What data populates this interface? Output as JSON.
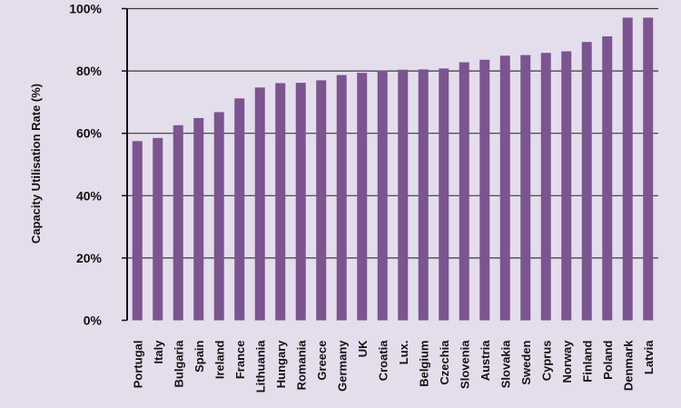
{
  "chart_data": {
    "type": "bar",
    "title": "",
    "xlabel": "",
    "ylabel": "Capacity Utilisation Rate (%)",
    "ylim": [
      0,
      100
    ],
    "yticks": [
      "0%",
      "20%",
      "40%",
      "60%",
      "80%",
      "100%"
    ],
    "grid": true,
    "bar_color": "#7b5490",
    "background_color": "#e4deec",
    "categories": [
      "Portugal",
      "Italy",
      "Bulgaria",
      "Spain",
      "Ireland",
      "France",
      "Lithuania",
      "Hungary",
      "Romania",
      "Greece",
      "Germany",
      "UK",
      "Croatia",
      "Lux.",
      "Belgium",
      "Czechia",
      "Slovenia",
      "Austria",
      "Slovakia",
      "Sweden",
      "Cyprus",
      "Norway",
      "Finland",
      "Poland",
      "Denmark",
      "Latvia"
    ],
    "values": [
      57.5,
      58.5,
      62.6,
      64.9,
      66.8,
      71.2,
      74.7,
      76.1,
      76.2,
      77.0,
      78.7,
      79.4,
      80.1,
      80.4,
      80.5,
      80.8,
      82.8,
      83.6,
      84.9,
      85.1,
      85.8,
      86.3,
      89.3,
      91.1,
      97.1,
      97.1
    ]
  }
}
